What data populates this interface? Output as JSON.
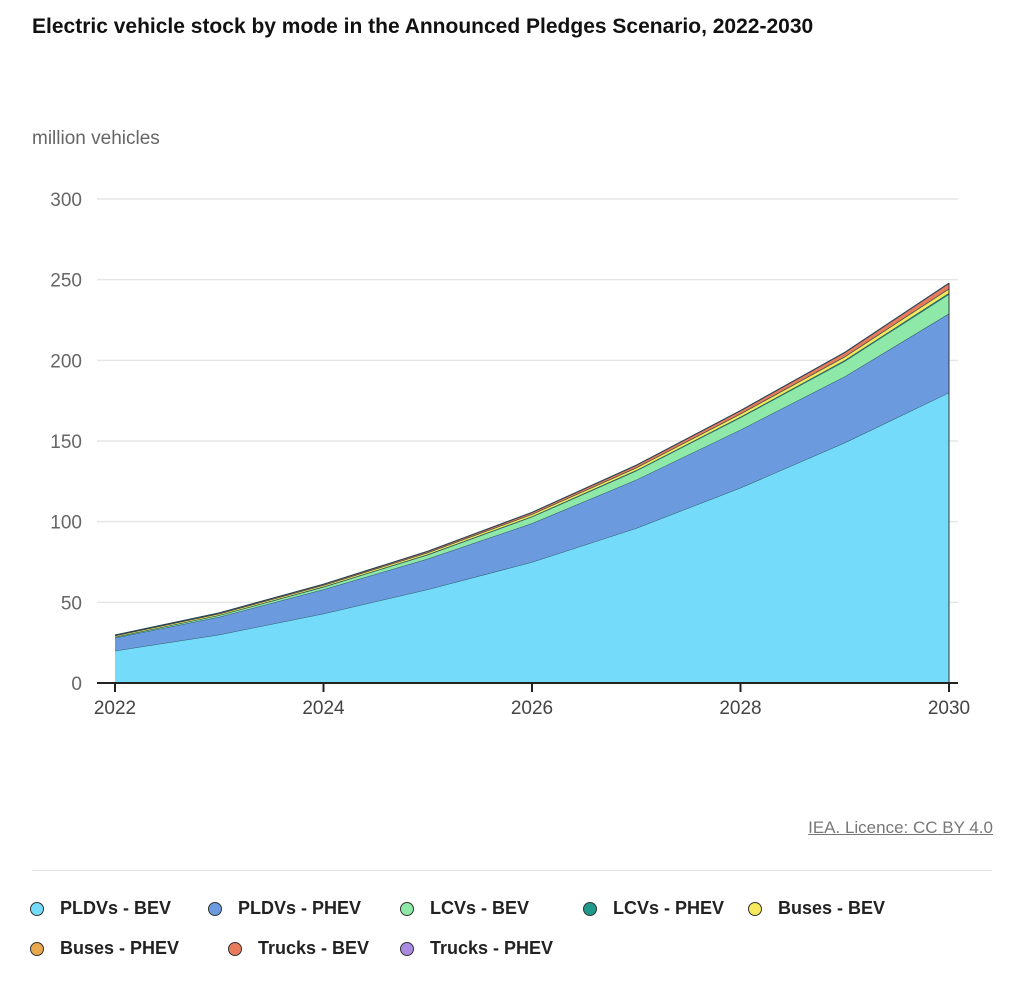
{
  "chart_data": {
    "type": "area",
    "stacked": true,
    "title": "Electric vehicle stock by mode in the Announced Pledges Scenario, 2022-2030",
    "ylabel": "million vehicles",
    "xlabel": "",
    "x": [
      2022,
      2023,
      2024,
      2025,
      2026,
      2027,
      2028,
      2029,
      2030
    ],
    "xticks": [
      "2022",
      "2024",
      "2026",
      "2028",
      "2030"
    ],
    "yticks": [
      "0",
      "50",
      "100",
      "150",
      "200",
      "250",
      "300"
    ],
    "ylim": [
      0,
      300
    ],
    "grid": true,
    "legend_position": "bottom",
    "series": [
      {
        "name": "PLDVs - BEV",
        "color": "#74dcfa",
        "values": [
          20,
          30,
          43,
          58,
          75,
          96,
          121,
          149,
          180
        ]
      },
      {
        "name": "PLDVs - PHEV",
        "color": "#6b9bde",
        "values": [
          8,
          11,
          15,
          19,
          24,
          30,
          36,
          41,
          49
        ]
      },
      {
        "name": "LCVs - BEV",
        "color": "#8ee9a8",
        "values": [
          0.5,
          1,
          1.5,
          2.5,
          4,
          5.5,
          7.5,
          9.5,
          12
        ]
      },
      {
        "name": "LCVs - PHEV",
        "color": "#1e9a8a",
        "values": [
          0.1,
          0.1,
          0.2,
          0.2,
          0.3,
          0.4,
          0.5,
          0.6,
          0.8
        ]
      },
      {
        "name": "Buses - BEV",
        "color": "#f6ea5c",
        "values": [
          0.7,
          0.8,
          0.9,
          1.1,
          1.3,
          1.5,
          1.8,
          2.1,
          2.5
        ]
      },
      {
        "name": "Buses - PHEV",
        "color": "#e8a94c",
        "values": [
          0.1,
          0.1,
          0.1,
          0.1,
          0.1,
          0.2,
          0.2,
          0.2,
          0.2
        ]
      },
      {
        "name": "Trucks - BEV",
        "color": "#e87b5c",
        "values": [
          0.3,
          0.4,
          0.5,
          0.7,
          1,
          1.3,
          1.8,
          2.4,
          3.2
        ]
      },
      {
        "name": "Trucks - PHEV",
        "color": "#a98be2",
        "values": [
          0.05,
          0.05,
          0.05,
          0.1,
          0.1,
          0.1,
          0.1,
          0.2,
          0.2
        ]
      }
    ]
  },
  "source": "IEA. Licence: CC BY 4.0"
}
